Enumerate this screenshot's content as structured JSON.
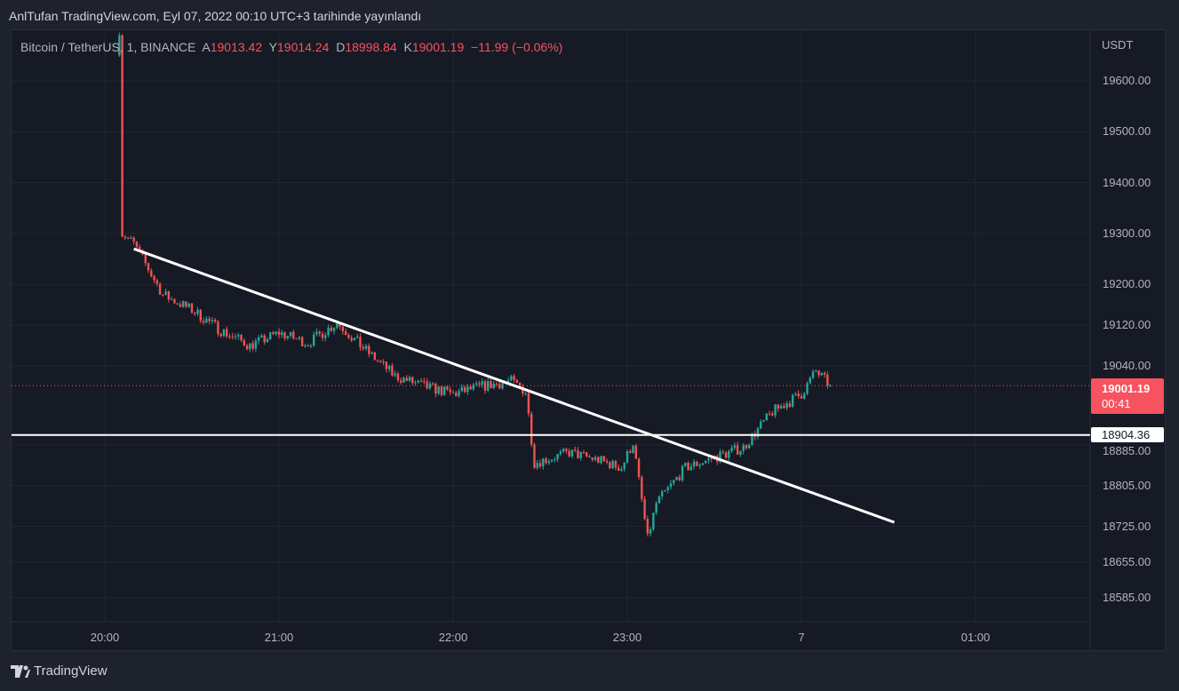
{
  "published": "AnlTufan TradingView.com, Eyl 07, 2022 00:10 UTC+3 tarihinde yayınlandı",
  "legend": {
    "symbol": "Bitcoin / TetherUS, 1, BINANCE",
    "open_label": "A",
    "open": "19013.42",
    "high_label": "Y",
    "high": "19014.24",
    "low_label": "D",
    "low": "18998.84",
    "close_label": "K",
    "close": "19001.19",
    "change": "−11.99 (−0.06%)"
  },
  "axis_unit": "USDT",
  "last_price": {
    "price": "19001.19",
    "countdown": "00:41"
  },
  "hline_label": "18904.36",
  "footer": {
    "brand": "TradingView"
  },
  "colors": {
    "up": "#26a69a",
    "down": "#ef5350",
    "background": "#161a25"
  },
  "chart_data": {
    "type": "candlestick",
    "interval_minutes": 1,
    "y_ticks": [
      "19600.00",
      "19500.00",
      "19400.00",
      "19300.00",
      "19200.00",
      "19120.00",
      "19040.00",
      "18885.00",
      "18805.00",
      "18725.00",
      "18655.00",
      "18585.00"
    ],
    "y_tick_values": [
      19600,
      19500,
      19400,
      19300,
      19200,
      19120,
      19040,
      18885,
      18805,
      18725,
      18655,
      18585
    ],
    "x_ticks": [
      "20:00",
      "21:00",
      "22:00",
      "23:00",
      "7",
      "01:00"
    ],
    "x_tick_minutes": [
      0,
      60,
      120,
      180,
      240,
      300
    ],
    "close_path_minutes": [
      5,
      6,
      10,
      20,
      30,
      40,
      50,
      60,
      70,
      80,
      90,
      100,
      110,
      120,
      130,
      140,
      145,
      148,
      160,
      170,
      178,
      182,
      187,
      190,
      200,
      210,
      220,
      230,
      240,
      245,
      250
    ],
    "close_path_prices": [
      19700,
      19300,
      19280,
      19180,
      19150,
      19110,
      19080,
      19105,
      19085,
      19125,
      19070,
      19020,
      19000,
      18985,
      19000,
      19010,
      18990,
      18850,
      18870,
      18855,
      18840,
      18890,
      18700,
      18770,
      18840,
      18860,
      18880,
      18950,
      18985,
      19030,
      19001
    ],
    "trendline": {
      "start": {
        "minute": 10,
        "price": 19270
      },
      "end": {
        "minute": 272,
        "price": 18733
      },
      "color": "#ffffff"
    },
    "horizontal_line": {
      "price": 18904.36,
      "color": "#ffffff"
    },
    "last_price": 19001.19
  }
}
